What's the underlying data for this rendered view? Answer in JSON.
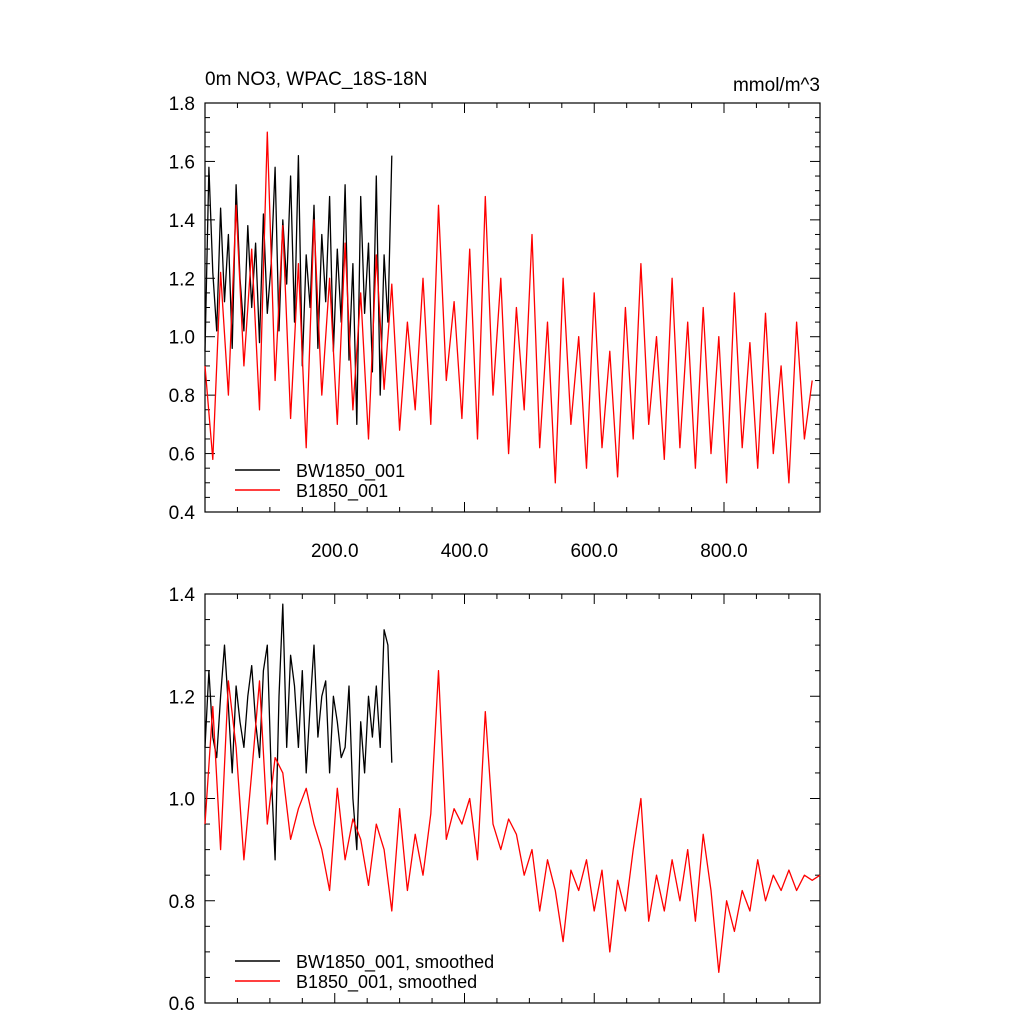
{
  "colors": {
    "series_a": "#000000",
    "series_b": "#ff0000",
    "axes": "#000000"
  },
  "chart_data": [
    {
      "type": "line",
      "title_left": "0m NO3, WPAC_18S-18N",
      "title_right": "mmol/m^3",
      "xlim": [
        0,
        948
      ],
      "ylim": [
        0.4,
        1.8
      ],
      "xticks": [
        200,
        400,
        600,
        800
      ],
      "xtick_labels": [
        "200.0",
        "400.0",
        "600.0",
        "800.0"
      ],
      "yticks": [
        0.4,
        0.6,
        0.8,
        1.0,
        1.2,
        1.4,
        1.6,
        1.8
      ],
      "ytick_labels": [
        "0.4",
        "0.6",
        "0.8",
        "1.0",
        "1.2",
        "1.4",
        "1.6",
        "1.8"
      ],
      "legend_position": "bottom-left",
      "series": [
        {
          "name": "BW1850_001",
          "color": "#000000",
          "x": [
            0,
            6,
            12,
            18,
            24,
            30,
            36,
            42,
            48,
            54,
            60,
            66,
            72,
            78,
            84,
            90,
            96,
            102,
            108,
            114,
            120,
            126,
            132,
            138,
            144,
            150,
            156,
            162,
            168,
            174,
            180,
            186,
            192,
            198,
            204,
            210,
            216,
            222,
            228,
            234,
            240,
            246,
            252,
            258,
            264,
            270,
            276,
            282,
            288
          ],
          "values": [
            0.95,
            1.58,
            1.22,
            1.02,
            1.44,
            1.12,
            1.35,
            0.96,
            1.52,
            1.2,
            1.02,
            1.38,
            1.1,
            1.32,
            0.98,
            1.42,
            1.08,
            1.25,
            1.58,
            1.02,
            1.4,
            1.18,
            1.55,
            1.05,
            1.62,
            0.9,
            1.28,
            1.1,
            1.45,
            0.96,
            1.35,
            1.12,
            1.48,
            0.95,
            1.3,
            1.05,
            1.52,
            0.92,
            1.25,
            0.7,
            1.48,
            1.08,
            1.32,
            0.88,
            1.55,
            0.8,
            1.28,
            1.05,
            1.62
          ]
        },
        {
          "name": "B1850_001",
          "color": "#ff0000",
          "x": [
            0,
            12,
            24,
            36,
            48,
            60,
            72,
            84,
            96,
            108,
            120,
            132,
            144,
            156,
            168,
            180,
            192,
            204,
            216,
            228,
            240,
            252,
            264,
            276,
            288,
            300,
            312,
            324,
            336,
            348,
            360,
            372,
            384,
            396,
            408,
            420,
            432,
            444,
            456,
            468,
            480,
            492,
            504,
            516,
            528,
            540,
            552,
            564,
            576,
            588,
            600,
            612,
            624,
            636,
            648,
            660,
            672,
            684,
            696,
            708,
            720,
            732,
            744,
            756,
            768,
            780,
            792,
            804,
            816,
            828,
            840,
            852,
            864,
            876,
            888,
            900,
            912,
            924,
            936
          ],
          "values": [
            0.9,
            0.58,
            1.22,
            0.8,
            1.45,
            0.9,
            1.3,
            0.75,
            1.7,
            0.85,
            1.38,
            0.72,
            1.25,
            0.62,
            1.4,
            0.8,
            1.2,
            0.7,
            1.32,
            0.75,
            1.15,
            0.65,
            1.28,
            0.82,
            1.18,
            0.68,
            1.05,
            0.75,
            1.2,
            0.7,
            1.45,
            0.85,
            1.12,
            0.72,
            1.3,
            0.65,
            1.48,
            0.8,
            1.2,
            0.6,
            1.1,
            0.75,
            1.35,
            0.62,
            1.05,
            0.5,
            1.2,
            0.7,
            1.0,
            0.55,
            1.15,
            0.62,
            0.95,
            0.52,
            1.1,
            0.65,
            1.25,
            0.7,
            1.0,
            0.58,
            1.2,
            0.62,
            1.05,
            0.55,
            1.1,
            0.6,
            1.0,
            0.5,
            1.15,
            0.62,
            0.98,
            0.55,
            1.08,
            0.6,
            0.9,
            0.5,
            1.05,
            0.65,
            0.85
          ]
        }
      ]
    },
    {
      "type": "line",
      "xlim": [
        0,
        948
      ],
      "ylim": [
        0.6,
        1.4
      ],
      "yticks": [
        0.6,
        0.8,
        1.0,
        1.2,
        1.4
      ],
      "ytick_labels": [
        "0.6",
        "0.8",
        "1.0",
        "1.2",
        "1.4"
      ],
      "legend_position": "bottom-left",
      "series": [
        {
          "name": "BW1850_001, smoothed",
          "color": "#000000",
          "x": [
            0,
            6,
            12,
            18,
            24,
            30,
            36,
            42,
            48,
            54,
            60,
            66,
            72,
            78,
            84,
            90,
            96,
            102,
            108,
            114,
            120,
            126,
            132,
            138,
            144,
            150,
            156,
            162,
            168,
            174,
            180,
            186,
            192,
            198,
            204,
            210,
            216,
            222,
            228,
            234,
            240,
            246,
            252,
            258,
            264,
            270,
            276,
            282,
            288
          ],
          "values": [
            1.1,
            1.25,
            1.12,
            1.08,
            1.2,
            1.3,
            1.18,
            1.05,
            1.22,
            1.15,
            1.1,
            1.2,
            1.26,
            1.15,
            1.08,
            1.25,
            1.3,
            1.05,
            0.88,
            1.2,
            1.38,
            1.1,
            1.28,
            1.22,
            1.1,
            1.25,
            1.05,
            1.18,
            1.3,
            1.12,
            1.2,
            1.23,
            1.05,
            1.2,
            1.15,
            1.08,
            1.1,
            1.22,
            1.0,
            0.9,
            1.15,
            1.05,
            1.2,
            1.12,
            1.22,
            1.1,
            1.33,
            1.3,
            1.07
          ]
        },
        {
          "name": "B1850_001, smoothed",
          "color": "#ff0000",
          "x": [
            0,
            12,
            24,
            36,
            48,
            60,
            72,
            84,
            96,
            108,
            120,
            132,
            144,
            156,
            168,
            180,
            192,
            204,
            216,
            228,
            240,
            252,
            264,
            276,
            288,
            300,
            312,
            324,
            336,
            348,
            360,
            372,
            384,
            396,
            408,
            420,
            432,
            444,
            456,
            468,
            480,
            492,
            504,
            516,
            528,
            540,
            552,
            564,
            576,
            588,
            600,
            612,
            624,
            636,
            648,
            660,
            672,
            684,
            696,
            708,
            720,
            732,
            744,
            756,
            768,
            780,
            792,
            804,
            816,
            828,
            840,
            852,
            864,
            876,
            888,
            900,
            912,
            924,
            936,
            948
          ],
          "values": [
            0.95,
            1.18,
            0.9,
            1.23,
            1.1,
            0.88,
            1.05,
            1.23,
            0.95,
            1.08,
            1.05,
            0.92,
            0.98,
            1.02,
            0.95,
            0.9,
            0.82,
            1.02,
            0.88,
            0.96,
            0.92,
            0.83,
            0.95,
            0.9,
            0.78,
            0.98,
            0.82,
            0.93,
            0.85,
            0.97,
            1.25,
            0.92,
            0.98,
            0.95,
            1.0,
            0.88,
            1.17,
            0.95,
            0.9,
            0.96,
            0.93,
            0.85,
            0.9,
            0.78,
            0.88,
            0.82,
            0.72,
            0.86,
            0.82,
            0.88,
            0.78,
            0.86,
            0.7,
            0.84,
            0.78,
            0.9,
            1.0,
            0.76,
            0.85,
            0.78,
            0.88,
            0.8,
            0.9,
            0.76,
            0.93,
            0.82,
            0.66,
            0.8,
            0.74,
            0.82,
            0.78,
            0.88,
            0.8,
            0.85,
            0.82,
            0.86,
            0.82,
            0.85,
            0.84,
            0.85
          ]
        }
      ]
    }
  ]
}
